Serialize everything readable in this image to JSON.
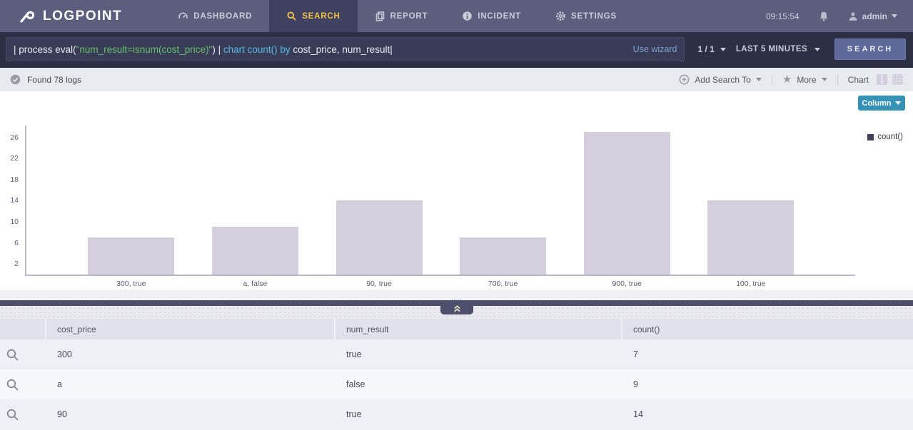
{
  "navbar": {
    "logo": "LOGPOINT",
    "tabs": [
      {
        "label": "DASHBOARD",
        "icon": "dashboard-icon",
        "active": false
      },
      {
        "label": "SEARCH",
        "icon": "search-icon",
        "active": true
      },
      {
        "label": "REPORT",
        "icon": "report-icon",
        "active": false
      },
      {
        "label": "INCIDENT",
        "icon": "incident-icon",
        "active": false
      },
      {
        "label": "SETTINGS",
        "icon": "settings-icon",
        "active": false
      }
    ],
    "clock": "09:15:54",
    "user": "admin"
  },
  "search_bar": {
    "query_segments": [
      {
        "text": "| process eval(",
        "color": "#e9eaf2"
      },
      {
        "text": "\"num_result=isnum(cost_price)\"",
        "color": "#69bf6d"
      },
      {
        "text": ") | ",
        "color": "#e9eaf2"
      },
      {
        "text": "chart count() by ",
        "color": "#58b7e6"
      },
      {
        "text": "cost_price, num_result",
        "color": "#e9eaf2"
      }
    ],
    "cursor": "|",
    "use_wizard": "Use wizard",
    "pagination": "1 / 1",
    "time_range": "LAST 5 MINUTES",
    "search_button": "SEARCH"
  },
  "status_bar": {
    "found_text": "Found 78 logs",
    "add_search_to": "Add Search To",
    "more": "More",
    "chart_label": "Chart"
  },
  "chart": {
    "type_button": "Column",
    "legend": "count()"
  },
  "chart_data": {
    "type": "bar",
    "title": "",
    "categories": [
      "300, true",
      "a, false",
      "90, true",
      "700, true",
      "900, true",
      "100, true"
    ],
    "series": [
      {
        "name": "count()",
        "values": [
          7,
          9,
          14,
          7,
          27,
          14
        ]
      }
    ],
    "xlabel": "",
    "ylabel": "",
    "yticks": [
      2,
      6,
      10,
      14,
      18,
      22,
      26
    ],
    "ylim": [
      0,
      28
    ],
    "grid": false,
    "legend_position": "top-right",
    "bar_color": "#d5cedd"
  },
  "table": {
    "columns": [
      "cost_price",
      "num_result",
      "count()"
    ],
    "rows": [
      [
        "300",
        "true",
        "7"
      ],
      [
        "a",
        "false",
        "9"
      ],
      [
        "90",
        "true",
        "14"
      ]
    ]
  },
  "colors": {
    "navbar_bg": "#5b5f7d",
    "active_tab_text": "#f2c246",
    "query_string_green": "#69bf6d",
    "query_keyword_blue": "#58b7e6",
    "search_button_bg": "#5e6899",
    "column_button_bg": "#3793b5",
    "bar_fill": "#d5cedd",
    "legend_swatch": "#3f3f5e"
  }
}
